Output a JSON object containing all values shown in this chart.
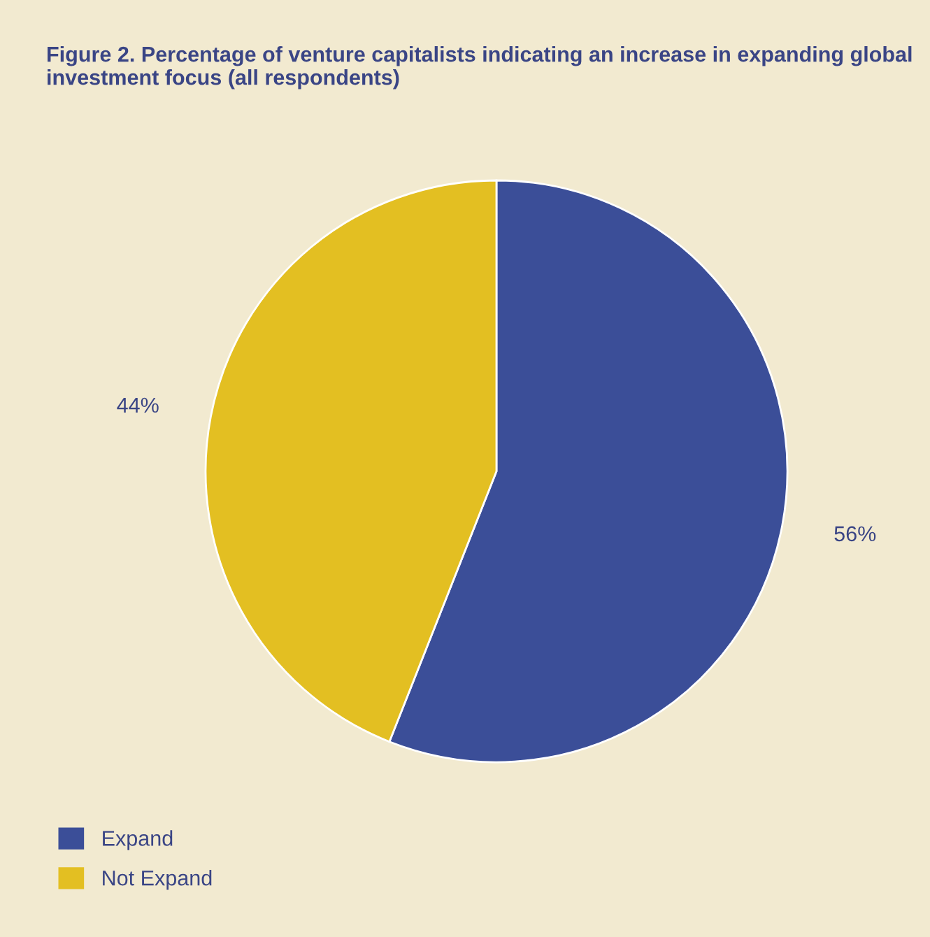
{
  "chart_data": {
    "type": "pie",
    "title": "Figure 2. Percentage of venture capitalists indicating an increase in expanding global investment focus (all respondents)",
    "categories": [
      "Expand",
      "Not Expand"
    ],
    "values": [
      56,
      44
    ],
    "colors": [
      "#3b4e98",
      "#e3bf22"
    ],
    "value_labels": [
      "56%",
      "44%"
    ],
    "legend": "bottom left"
  }
}
